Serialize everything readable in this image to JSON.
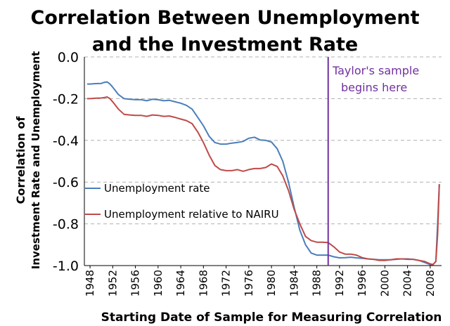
{
  "chart_data": {
    "type": "line",
    "title_lines": [
      "Correlation Between Unemployment",
      "and the Investment Rate"
    ],
    "xlabel": "Starting Date of Sample for Measuring Correlation",
    "ylabel_lines": [
      "Correlation of",
      "Investment Rate and Unemployment"
    ],
    "xlim": [
      1947,
      2010
    ],
    "ylim": [
      -1.0,
      0.0
    ],
    "y_ticks": [
      "0.0",
      "-0.2",
      "-0.4",
      "-0.6",
      "-0.8",
      "-1.0"
    ],
    "x_ticks": [
      "1948",
      "1952",
      "1956",
      "1960",
      "1964",
      "1968",
      "1972",
      "1976",
      "1980",
      "1984",
      "1988",
      "1992",
      "1996",
      "2000",
      "2004",
      "2008"
    ],
    "grid": "horizontal-dashed",
    "legend_position": "middle-left",
    "annotation": {
      "text_lines": [
        "Taylor's sample",
        "begins here"
      ],
      "x": 1990,
      "color": "#7030a0"
    },
    "series": [
      {
        "name": "Unemployment rate",
        "color": "#4a7ebb",
        "x": [
          1947.5,
          1948,
          1949,
          1950,
          1950.5,
          1951,
          1951.5,
          1952,
          1953,
          1954,
          1955,
          1956,
          1957,
          1958,
          1959,
          1960,
          1961,
          1962,
          1963,
          1964,
          1965,
          1966,
          1967,
          1968,
          1969,
          1970,
          1971,
          1972,
          1973,
          1974,
          1975,
          1976,
          1977,
          1978,
          1979,
          1980,
          1981,
          1982,
          1983,
          1984,
          1985,
          1986,
          1987,
          1988,
          1989,
          1990,
          1991,
          1992,
          1993,
          1994,
          1995,
          1996,
          1997,
          1998,
          1999,
          2000,
          2001,
          2002,
          2003,
          2004,
          2005,
          2006,
          2007,
          2008,
          2008.5,
          2009,
          2009.3,
          2009.6
        ],
        "values": [
          -0.13,
          -0.13,
          -0.128,
          -0.127,
          -0.122,
          -0.12,
          -0.13,
          -0.145,
          -0.18,
          -0.2,
          -0.203,
          -0.205,
          -0.205,
          -0.21,
          -0.203,
          -0.205,
          -0.21,
          -0.208,
          -0.215,
          -0.222,
          -0.232,
          -0.25,
          -0.29,
          -0.33,
          -0.38,
          -0.41,
          -0.418,
          -0.418,
          -0.413,
          -0.41,
          -0.405,
          -0.39,
          -0.385,
          -0.398,
          -0.4,
          -0.408,
          -0.44,
          -0.5,
          -0.6,
          -0.72,
          -0.83,
          -0.9,
          -0.94,
          -0.95,
          -0.95,
          -0.95,
          -0.958,
          -0.963,
          -0.962,
          -0.96,
          -0.963,
          -0.965,
          -0.968,
          -0.97,
          -0.972,
          -0.972,
          -0.972,
          -0.97,
          -0.968,
          -0.968,
          -0.97,
          -0.975,
          -0.985,
          -0.995,
          -0.995,
          -0.98,
          -0.8,
          -0.61
        ]
      },
      {
        "name": "Unemployment relative to NAIRU",
        "color": "#be4b48",
        "x": [
          1947.5,
          1948,
          1949,
          1950,
          1950.5,
          1951,
          1951.5,
          1952,
          1953,
          1954,
          1955,
          1956,
          1957,
          1958,
          1959,
          1960,
          1961,
          1962,
          1963,
          1964,
          1965,
          1966,
          1967,
          1968,
          1969,
          1970,
          1971,
          1972,
          1973,
          1974,
          1975,
          1976,
          1977,
          1978,
          1979,
          1980,
          1981,
          1982,
          1983,
          1984,
          1985,
          1986,
          1987,
          1988,
          1989,
          1990,
          1991,
          1992,
          1993,
          1994,
          1995,
          1996,
          1997,
          1998,
          1999,
          2000,
          2001,
          2002,
          2003,
          2004,
          2005,
          2006,
          2007,
          2008,
          2008.5,
          2009,
          2009.3,
          2009.6
        ],
        "values": [
          -0.2,
          -0.2,
          -0.198,
          -0.197,
          -0.195,
          -0.192,
          -0.2,
          -0.215,
          -0.25,
          -0.275,
          -0.278,
          -0.28,
          -0.28,
          -0.285,
          -0.278,
          -0.28,
          -0.285,
          -0.283,
          -0.29,
          -0.298,
          -0.305,
          -0.32,
          -0.36,
          -0.41,
          -0.47,
          -0.52,
          -0.54,
          -0.545,
          -0.545,
          -0.54,
          -0.548,
          -0.54,
          -0.535,
          -0.535,
          -0.53,
          -0.513,
          -0.525,
          -0.57,
          -0.64,
          -0.73,
          -0.8,
          -0.86,
          -0.88,
          -0.888,
          -0.888,
          -0.89,
          -0.91,
          -0.935,
          -0.945,
          -0.945,
          -0.95,
          -0.962,
          -0.968,
          -0.97,
          -0.975,
          -0.975,
          -0.972,
          -0.968,
          -0.968,
          -0.97,
          -0.97,
          -0.975,
          -0.98,
          -0.992,
          -0.995,
          -0.98,
          -0.85,
          -0.61
        ]
      }
    ]
  }
}
